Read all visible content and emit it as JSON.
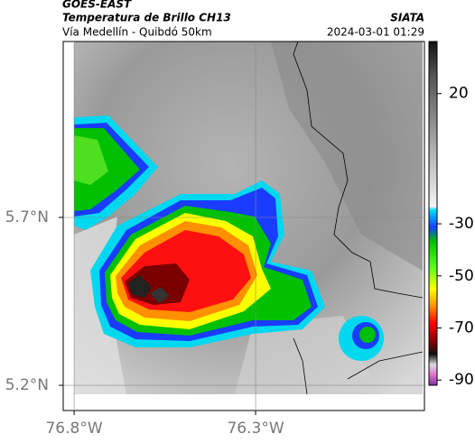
{
  "header": {
    "source": "GOES-EAST",
    "title": "Temperatura de Brillo CH13",
    "agency": "SIATA",
    "subtitle": "Vía Medellín - Quibdó 50km",
    "datetime": "2024-03-01 01:29"
  },
  "map": {
    "xlim": [
      -76.83,
      -75.835
    ],
    "ylim": [
      5.125,
      6.224
    ],
    "xticks": [
      {
        "value": -76.8,
        "label": "76.8°W"
      },
      {
        "value": -76.3,
        "label": "76.3°W"
      }
    ],
    "yticks": [
      {
        "value": 5.2,
        "label": "5.2°N"
      },
      {
        "value": 5.7,
        "label": "5.7°N"
      }
    ]
  },
  "colorbar": {
    "lim": [
      40,
      -92
    ],
    "ticks": [
      20,
      -30,
      -50,
      -70,
      -90
    ]
  }
}
